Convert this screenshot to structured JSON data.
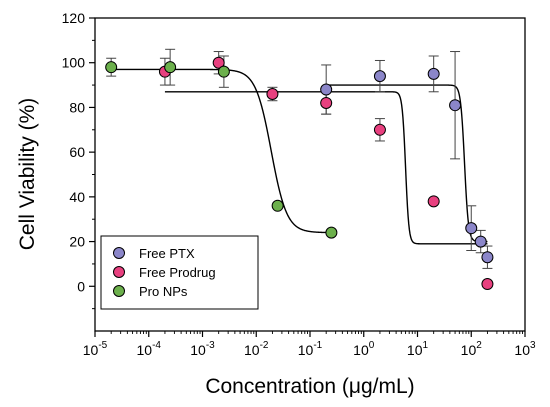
{
  "chart_data": {
    "type": "scatter",
    "xlabel": "Concentration (μg/mL)",
    "ylabel": "Cell Viability (%)",
    "x_scale": "log",
    "xlim": [
      1e-05,
      1000
    ],
    "ylim": [
      -20,
      120
    ],
    "x_ticks": [
      {
        "value": 1e-05,
        "base": "10",
        "exp": "-5"
      },
      {
        "value": 0.0001,
        "base": "10",
        "exp": "-4"
      },
      {
        "value": 0.001,
        "base": "10",
        "exp": "-3"
      },
      {
        "value": 0.01,
        "base": "10",
        "exp": "-2"
      },
      {
        "value": 0.1,
        "base": "10",
        "exp": "-1"
      },
      {
        "value": 1,
        "base": "10",
        "exp": "0"
      },
      {
        "value": 10,
        "base": "10",
        "exp": "1"
      },
      {
        "value": 100,
        "base": "10",
        "exp": "2"
      },
      {
        "value": 1000,
        "base": "10",
        "exp": "3"
      }
    ],
    "y_ticks": [
      0,
      20,
      40,
      60,
      80,
      100,
      120
    ],
    "grid": false,
    "legend_position": "bottom-left",
    "series": [
      {
        "name": "Free PTX",
        "color": "#8b86c9",
        "points": [
          {
            "x": 0.2,
            "y": 88,
            "err": 11
          },
          {
            "x": 2,
            "y": 94,
            "err": 7
          },
          {
            "x": 20,
            "y": 95,
            "err": 8
          },
          {
            "x": 50,
            "y": 81,
            "err": 24
          },
          {
            "x": 100,
            "y": 26,
            "err": 10
          },
          {
            "x": 150,
            "y": 20,
            "err": 5
          },
          {
            "x": 200,
            "y": 13,
            "err": 5
          }
        ],
        "fit": {
          "top": 90,
          "bottom": 20,
          "ic50": 75,
          "hill": 12
        }
      },
      {
        "name": "Free Prodrug",
        "color": "#e8407f",
        "points": [
          {
            "x": 0.0002,
            "y": 96,
            "err": 6
          },
          {
            "x": 0.002,
            "y": 100,
            "err": 5
          },
          {
            "x": 0.02,
            "y": 86,
            "err": 3
          },
          {
            "x": 0.2,
            "y": 82,
            "err": 5
          },
          {
            "x": 2,
            "y": 70,
            "err": 5
          },
          {
            "x": 20,
            "y": 38,
            "err": 0
          },
          {
            "x": 200,
            "y": 1,
            "err": 0
          }
        ],
        "fit": {
          "top": 87,
          "bottom": 19,
          "ic50": 6,
          "hill": 14
        }
      },
      {
        "name": "Pro NPs",
        "color": "#6cb04c",
        "points": [
          {
            "x": 2e-05,
            "y": 98,
            "err": 4
          },
          {
            "x": 0.00025,
            "y": 98,
            "err": 8
          },
          {
            "x": 0.0025,
            "y": 96,
            "err": 7
          },
          {
            "x": 0.025,
            "y": 36,
            "err": 0
          },
          {
            "x": 0.25,
            "y": 24,
            "err": 0
          }
        ],
        "fit": {
          "top": 97,
          "bottom": 24,
          "ic50": 0.019,
          "hill": 3
        }
      }
    ]
  }
}
